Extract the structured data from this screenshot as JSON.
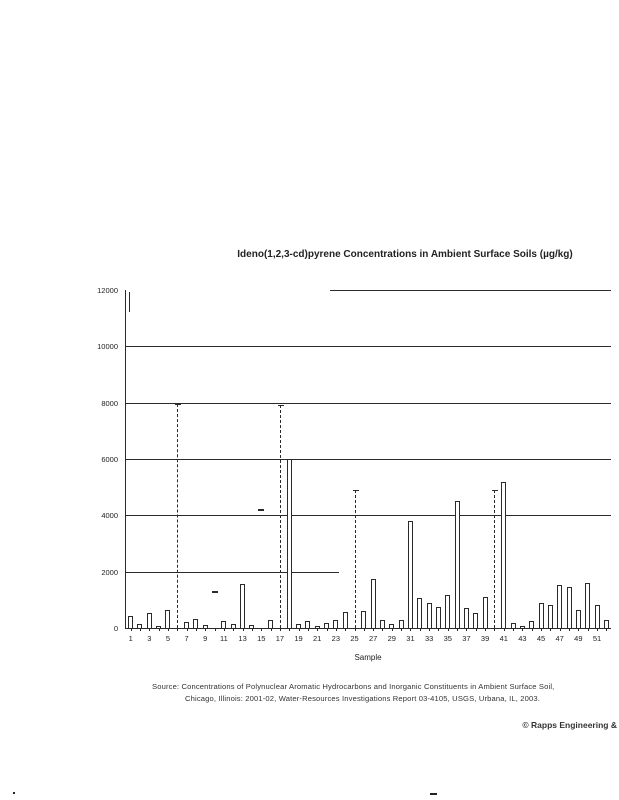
{
  "title": "Ideno(1,2,3-cd)pyrene Concentrations in Ambient Surface Soils (µg/kg)",
  "source_note": {
    "line1": "Source:  Concentrations of Polynuclear Aromatic Hydrocarbons and Inorganic Constituents in Ambient Surface Soil,",
    "line2": "Chicago, Illinois:  2001-02, Water-Resources Investigations Report 03-4105, USGS, Urbana, IL, 2003."
  },
  "copyright": "© Rapps Engineering &",
  "chart_data": {
    "type": "bar",
    "title": "Ideno(1,2,3-cd)pyrene Concentrations in Ambient Surface Soils (µg/kg)",
    "xlabel": "Sample",
    "ylabel": "",
    "ylim": [
      0,
      12000
    ],
    "yticks": [
      0,
      2000,
      4000,
      6000,
      8000,
      10000,
      12000
    ],
    "xtick_labels": [
      1,
      3,
      5,
      7,
      9,
      11,
      13,
      15,
      17,
      19,
      21,
      23,
      25,
      27,
      29,
      31,
      33,
      35,
      37,
      39,
      41,
      43,
      45,
      47,
      49,
      51
    ],
    "categories": [
      1,
      2,
      3,
      4,
      5,
      6,
      7,
      8,
      9,
      10,
      11,
      12,
      13,
      14,
      15,
      16,
      17,
      18,
      19,
      20,
      21,
      22,
      23,
      24,
      25,
      26,
      27,
      28,
      29,
      30,
      31,
      32,
      33,
      34,
      35,
      36,
      37,
      38,
      39,
      40,
      41,
      42,
      43,
      44,
      45,
      46,
      47,
      48,
      49,
      50,
      51,
      52
    ],
    "values": [
      420,
      150,
      530,
      60,
      640,
      7950,
      230,
      310,
      100,
      1300,
      260,
      150,
      1550,
      90,
      4240,
      300,
      7900,
      6000,
      140,
      260,
      60,
      190,
      270,
      570,
      4900,
      600,
      1730,
      300,
      150,
      280,
      3800,
      1060,
      900,
      740,
      1160,
      4520,
      700,
      530,
      1100,
      4900,
      5200,
      180,
      60,
      250,
      880,
      810,
      1520,
      1450,
      640,
      1590,
      800,
      280
    ],
    "bar_color": "#ffffff",
    "bar_outline_color": "#2a2a2a",
    "grid": "on",
    "legend": "none",
    "render_hints": {
      "dashed_line_samples": [
        6,
        17,
        25,
        40
      ],
      "top_cap_only_samples": [
        10,
        15
      ],
      "gridline_spans": {
        "12000": [
          0.42,
          1.0
        ],
        "10000": [
          0.0,
          1.0
        ],
        "8000": [
          0.0,
          1.0
        ],
        "6000": [
          0.0,
          1.0
        ],
        "4000": [
          0.0,
          1.0
        ],
        "2000": [
          0.0,
          0.44
        ]
      }
    }
  }
}
